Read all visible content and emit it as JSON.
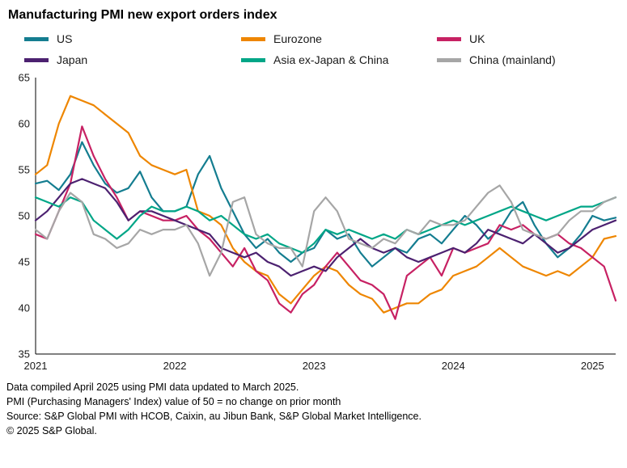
{
  "header": {
    "title": "Manufacturing PMI new export orders index"
  },
  "footer": {
    "notes": [
      "Data compiled April 2025 using PMI data updated to March 2025.",
      "PMI (Purchasing Managers' Index) value of 50 = no change on prior month",
      "Source: S&P Global PMI with HCOB, Caixin, au Jibun Bank, S&P Global Market Intelligence.",
      "© 2025 S&P Global."
    ]
  },
  "chart_data": {
    "type": "line",
    "title": "Manufacturing PMI new export orders index",
    "xlabel": "",
    "ylabel": "",
    "ylim": [
      35,
      65
    ],
    "yticks": [
      35,
      40,
      45,
      50,
      55,
      60,
      65
    ],
    "grid": false,
    "legend_position": "top",
    "x": [
      "Jan 2021",
      "Feb 2021",
      "Mar 2021",
      "Apr 2021",
      "May 2021",
      "Jun 2021",
      "Jul 2021",
      "Aug 2021",
      "Sep 2021",
      "Oct 2021",
      "Nov 2021",
      "Dec 2021",
      "Jan 2022",
      "Feb 2022",
      "Mar 2022",
      "Apr 2022",
      "May 2022",
      "Jun 2022",
      "Jul 2022",
      "Aug 2022",
      "Sep 2022",
      "Oct 2022",
      "Nov 2022",
      "Dec 2022",
      "Jan 2023",
      "Feb 2023",
      "Mar 2023",
      "Apr 2023",
      "May 2023",
      "Jun 2023",
      "Jul 2023",
      "Aug 2023",
      "Sep 2023",
      "Oct 2023",
      "Nov 2023",
      "Dec 2023",
      "Jan 2024",
      "Feb 2024",
      "Mar 2024",
      "Apr 2024",
      "May 2024",
      "Jun 2024",
      "Jul 2024",
      "Aug 2024",
      "Sep 2024",
      "Oct 2024",
      "Nov 2024",
      "Dec 2024",
      "Jan 2025",
      "Feb 2025",
      "Mar 2025"
    ],
    "year_ticks": [
      {
        "label": "2021",
        "index": 0
      },
      {
        "label": "2022",
        "index": 12
      },
      {
        "label": "2023",
        "index": 24
      },
      {
        "label": "2024",
        "index": 36
      },
      {
        "label": "2025",
        "index": 48
      }
    ],
    "series": [
      {
        "name": "US",
        "color": "#147d90",
        "values": [
          53.5,
          53.8,
          52.8,
          54.5,
          58.0,
          55.5,
          53.5,
          52.5,
          53.0,
          54.8,
          52.0,
          50.5,
          50.5,
          51.0,
          54.5,
          56.5,
          53.0,
          50.5,
          48.0,
          46.5,
          47.5,
          46.0,
          45.0,
          46.0,
          46.5,
          48.5,
          47.5,
          48.0,
          46.0,
          44.5,
          45.5,
          46.5,
          46.0,
          47.5,
          48.0,
          47.0,
          48.5,
          50.0,
          49.0,
          47.5,
          48.5,
          50.5,
          51.5,
          49.0,
          47.0,
          45.5,
          46.5,
          48.0,
          50.0,
          49.5,
          49.8
        ]
      },
      {
        "name": "Eurozone",
        "color": "#ee8600",
        "values": [
          54.5,
          55.5,
          60.0,
          63.0,
          62.5,
          62.0,
          61.0,
          60.0,
          59.0,
          56.5,
          55.5,
          55.0,
          54.5,
          55.0,
          50.5,
          50.0,
          49.0,
          46.5,
          45.0,
          44.0,
          43.5,
          41.5,
          40.5,
          42.0,
          43.5,
          44.5,
          44.0,
          42.5,
          41.5,
          41.0,
          39.5,
          40.0,
          40.5,
          40.5,
          41.5,
          42.0,
          43.5,
          44.0,
          44.5,
          45.5,
          46.5,
          45.5,
          44.5,
          44.0,
          43.5,
          44.0,
          43.5,
          44.5,
          45.5,
          47.5,
          47.8
        ]
      },
      {
        "name": "UK",
        "color": "#c72163",
        "values": [
          48.0,
          47.5,
          50.5,
          53.5,
          59.7,
          56.5,
          54.0,
          52.0,
          49.5,
          50.5,
          50.0,
          49.5,
          49.5,
          50.0,
          48.5,
          47.5,
          46.0,
          44.5,
          46.5,
          44.0,
          43.0,
          40.5,
          39.5,
          41.5,
          42.5,
          44.5,
          46.0,
          44.5,
          43.0,
          42.5,
          41.5,
          38.8,
          43.5,
          44.5,
          45.5,
          43.5,
          46.5,
          46.0,
          46.5,
          47.0,
          49.0,
          48.5,
          49.0,
          48.0,
          47.5,
          48.0,
          47.0,
          46.5,
          45.5,
          44.5,
          40.8
        ]
      },
      {
        "name": "Japan",
        "color": "#4c2170",
        "values": [
          49.5,
          50.5,
          52.0,
          53.5,
          54.0,
          53.5,
          53.0,
          51.5,
          49.5,
          50.5,
          50.5,
          50.0,
          49.5,
          49.0,
          48.5,
          48.0,
          46.5,
          46.0,
          45.5,
          46.0,
          45.0,
          44.5,
          43.5,
          44.0,
          44.5,
          44.0,
          45.5,
          46.5,
          47.5,
          46.5,
          46.0,
          46.5,
          45.5,
          45.0,
          45.5,
          46.0,
          46.5,
          46.0,
          47.0,
          48.5,
          48.0,
          47.5,
          47.0,
          48.0,
          47.0,
          46.0,
          46.5,
          47.5,
          48.5,
          49.0,
          49.5
        ]
      },
      {
        "name": "Asia ex-Japan & China",
        "color": "#00a687",
        "values": [
          52.0,
          51.5,
          51.0,
          52.0,
          51.5,
          49.5,
          48.5,
          47.5,
          48.5,
          50.0,
          51.0,
          50.5,
          50.5,
          51.0,
          50.5,
          49.5,
          50.0,
          49.0,
          48.0,
          47.5,
          48.0,
          47.0,
          46.5,
          46.0,
          47.0,
          48.5,
          48.0,
          48.5,
          48.0,
          47.5,
          48.0,
          47.5,
          48.5,
          48.0,
          48.5,
          49.0,
          49.5,
          49.0,
          49.5,
          50.0,
          50.5,
          51.0,
          50.5,
          50.0,
          49.5,
          50.0,
          50.5,
          51.0,
          51.0,
          51.5,
          52.0
        ]
      },
      {
        "name": "China (mainland)",
        "color": "#a6a6a6",
        "values": [
          48.5,
          47.5,
          50.5,
          52.5,
          51.5,
          48.0,
          47.5,
          46.5,
          47.0,
          48.5,
          48.0,
          48.5,
          48.5,
          49.0,
          47.0,
          43.5,
          46.0,
          51.5,
          52.0,
          48.0,
          47.0,
          46.5,
          46.5,
          44.5,
          50.5,
          52.0,
          50.5,
          47.5,
          47.0,
          46.5,
          47.5,
          47.0,
          48.5,
          48.0,
          49.5,
          49.0,
          49.0,
          49.5,
          51.0,
          52.5,
          53.3,
          51.5,
          48.5,
          48.0,
          47.5,
          48.0,
          49.5,
          50.5,
          50.5,
          51.5,
          52.0
        ]
      }
    ]
  }
}
